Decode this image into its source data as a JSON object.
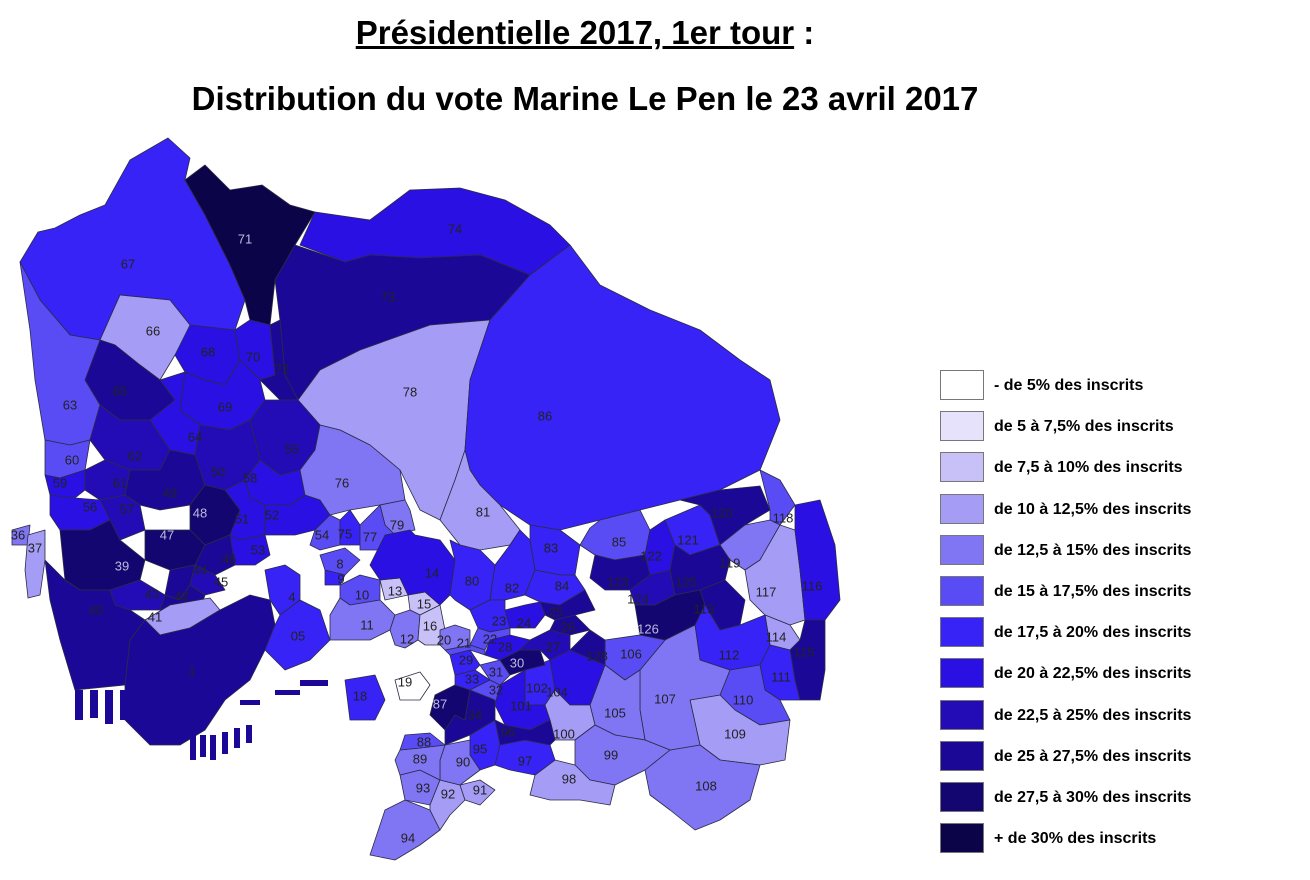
{
  "title": {
    "line1_main": "Présidentielle 2017, 1er tour",
    "line1_suffix": " :",
    "line2": "Distribution du vote Marine Le Pen le 23 avril 2017"
  },
  "legend": [
    {
      "label": "- de 5% des inscrits",
      "color": "#ffffff"
    },
    {
      "label": "de 5 à 7,5% des inscrits",
      "color": "#e6e2fb"
    },
    {
      "label": "de 7,5 à 10% des inscrits",
      "color": "#c8c1f8"
    },
    {
      "label": "de 10 à 12,5% des inscrits",
      "color": "#a59cf5"
    },
    {
      "label": "de 12,5 à 15% des inscrits",
      "color": "#8075f3"
    },
    {
      "label": "de 15 à 17,5% des inscrits",
      "color": "#5a4cf5"
    },
    {
      "label": "de 17,5 à 20% des inscrits",
      "color": "#3723f6"
    },
    {
      "label": "de 20 à 22,5% des inscrits",
      "color": "#2a10e2"
    },
    {
      "label": "de 22,5 à 25% des inscrits",
      "color": "#230cb5"
    },
    {
      "label": "de 25 à 27,5% des inscrits",
      "color": "#1c0897"
    },
    {
      "label": "de 27,5 à 30% des inscrits",
      "color": "#140670"
    },
    {
      "label": "+ de 30% des inscrits",
      "color": "#0c0448"
    }
  ],
  "bureaux": [
    {
      "n": "67",
      "c": 6
    },
    {
      "n": "71",
      "c": 11
    },
    {
      "n": "74",
      "c": 7
    },
    {
      "n": "73",
      "c": 9
    },
    {
      "n": "66",
      "c": 3
    },
    {
      "n": "68",
      "c": 7
    },
    {
      "n": "70",
      "c": 7
    },
    {
      "n": "72",
      "c": 9
    },
    {
      "n": "78",
      "c": 3
    },
    {
      "n": "86",
      "c": 6
    },
    {
      "n": "65",
      "c": 9
    },
    {
      "n": "63",
      "c": 5
    },
    {
      "n": "69",
      "c": 7
    },
    {
      "n": "64",
      "c": 7
    },
    {
      "n": "55",
      "c": 8
    },
    {
      "n": "62",
      "c": 8
    },
    {
      "n": "60",
      "c": 5
    },
    {
      "n": "61",
      "c": 8
    },
    {
      "n": "59",
      "c": 7
    },
    {
      "n": "50",
      "c": 8
    },
    {
      "n": "58",
      "c": 7
    },
    {
      "n": "49",
      "c": 9
    },
    {
      "n": "48",
      "c": 10
    },
    {
      "n": "56",
      "c": 7
    },
    {
      "n": "57",
      "c": 8
    },
    {
      "n": "51",
      "c": 7
    },
    {
      "n": "52",
      "c": 7
    },
    {
      "n": "76",
      "c": 4
    },
    {
      "n": "81",
      "c": 3
    },
    {
      "n": "79",
      "c": 4
    },
    {
      "n": "54",
      "c": 5
    },
    {
      "n": "75",
      "c": 6
    },
    {
      "n": "77",
      "c": 5
    },
    {
      "n": "36",
      "c": 4
    },
    {
      "n": "37",
      "c": 3
    },
    {
      "n": "53",
      "c": 7
    },
    {
      "n": "47",
      "c": 10
    },
    {
      "n": "46",
      "c": 9
    },
    {
      "n": "39",
      "c": 10
    },
    {
      "n": "45",
      "c": 8
    },
    {
      "n": "44",
      "c": 9
    },
    {
      "n": "43",
      "c": 8
    },
    {
      "n": "42",
      "c": 9
    },
    {
      "n": "40",
      "c": 9
    },
    {
      "n": "41",
      "c": 3
    },
    {
      "n": "1",
      "c": 9
    },
    {
      "n": "4",
      "c": 6
    },
    {
      "n": "05",
      "c": 6
    },
    {
      "n": "8",
      "c": 5
    },
    {
      "n": "9",
      "c": 6
    },
    {
      "n": "10",
      "c": 5
    },
    {
      "n": "13",
      "c": 2
    },
    {
      "n": "15",
      "c": 2
    },
    {
      "n": "14",
      "c": 7
    },
    {
      "n": "11",
      "c": 4
    },
    {
      "n": "12",
      "c": 4
    },
    {
      "n": "16",
      "c": 2
    },
    {
      "n": "18",
      "c": 6
    },
    {
      "n": "19",
      "c": 0
    },
    {
      "n": "80",
      "c": 6
    },
    {
      "n": "82",
      "c": 6
    },
    {
      "n": "83",
      "c": 6
    },
    {
      "n": "84",
      "c": 6
    },
    {
      "n": "85",
      "c": 5
    },
    {
      "n": "122",
      "c": 7
    },
    {
      "n": "121",
      "c": 6
    },
    {
      "n": "120",
      "c": 9
    },
    {
      "n": "118",
      "c": 5
    },
    {
      "n": "119",
      "c": 4
    },
    {
      "n": "117",
      "c": 3
    },
    {
      "n": "116",
      "c": 7
    },
    {
      "n": "123",
      "c": 9
    },
    {
      "n": "124",
      "c": 8
    },
    {
      "n": "125",
      "c": 9
    },
    {
      "n": "126",
      "c": 10
    },
    {
      "n": "113",
      "c": 9
    },
    {
      "n": "114",
      "c": 3
    },
    {
      "n": "115",
      "c": 9
    },
    {
      "n": "112",
      "c": 6
    },
    {
      "n": "111",
      "c": 6
    },
    {
      "n": "110",
      "c": 5
    },
    {
      "n": "109",
      "c": 3
    },
    {
      "n": "108",
      "c": 4
    },
    {
      "n": "107",
      "c": 4
    },
    {
      "n": "106",
      "c": 5
    },
    {
      "n": "105",
      "c": 4
    },
    {
      "n": "104",
      "c": 7
    },
    {
      "n": "102",
      "c": 6
    },
    {
      "n": "101",
      "c": 7
    },
    {
      "n": "100",
      "c": 3
    },
    {
      "n": "99",
      "c": 4
    },
    {
      "n": "98",
      "c": 3
    },
    {
      "n": "97",
      "c": 6
    },
    {
      "n": "96",
      "c": 9
    },
    {
      "n": "95",
      "c": 6
    },
    {
      "n": "94",
      "c": 4
    },
    {
      "n": "93",
      "c": 4
    },
    {
      "n": "92",
      "c": 3
    },
    {
      "n": "91",
      "c": 3
    },
    {
      "n": "90",
      "c": 4
    },
    {
      "n": "89",
      "c": 4
    },
    {
      "n": "88",
      "c": 5
    },
    {
      "n": "87",
      "c": 10
    },
    {
      "n": "34",
      "c": 9
    },
    {
      "n": "33",
      "c": 6
    },
    {
      "n": "32",
      "c": 5
    },
    {
      "n": "31",
      "c": 5
    },
    {
      "n": "30",
      "c": 10
    },
    {
      "n": "29",
      "c": 6
    },
    {
      "n": "28",
      "c": 7
    },
    {
      "n": "27",
      "c": 8
    },
    {
      "n": "26",
      "c": 9
    },
    {
      "n": "25",
      "c": 9
    },
    {
      "n": "24",
      "c": 7
    },
    {
      "n": "23",
      "c": 6
    },
    {
      "n": "22",
      "c": 5
    },
    {
      "n": "21",
      "c": 5
    },
    {
      "n": "20",
      "c": 4
    },
    {
      "n": "128",
      "c": 9
    }
  ]
}
